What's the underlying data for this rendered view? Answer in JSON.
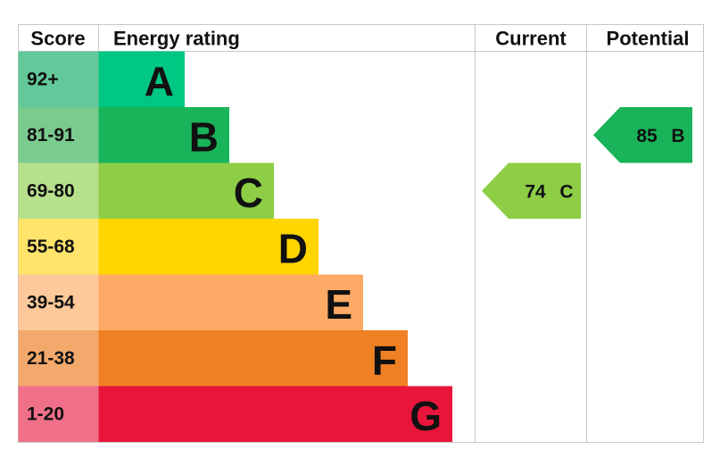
{
  "headers": {
    "score": "Score",
    "rating": "Energy rating",
    "current": "Current",
    "potential": "Potential"
  },
  "bands": [
    {
      "score": "92+",
      "rating": "A",
      "color": "#00c781",
      "light_color": "#63c99a"
    },
    {
      "score": "81-91",
      "rating": "B",
      "color": "#19b459",
      "light_color": "#7acb8e"
    },
    {
      "score": "69-80",
      "rating": "C",
      "color": "#8dce46",
      "light_color": "#b7e08c"
    },
    {
      "score": "55-68",
      "rating": "D",
      "color": "#ffd500",
      "light_color": "#ffe36b"
    },
    {
      "score": "39-54",
      "rating": "E",
      "color": "#fcaa65",
      "light_color": "#fdc99a"
    },
    {
      "score": "21-38",
      "rating": "F",
      "color": "#ef8023",
      "light_color": "#f4a96c"
    },
    {
      "score": "1-20",
      "rating": "G",
      "color": "#e9153b",
      "light_color": "#f0708a"
    }
  ],
  "current": {
    "value": 74,
    "rating": "C"
  },
  "potential": {
    "value": 85,
    "rating": "B"
  }
}
